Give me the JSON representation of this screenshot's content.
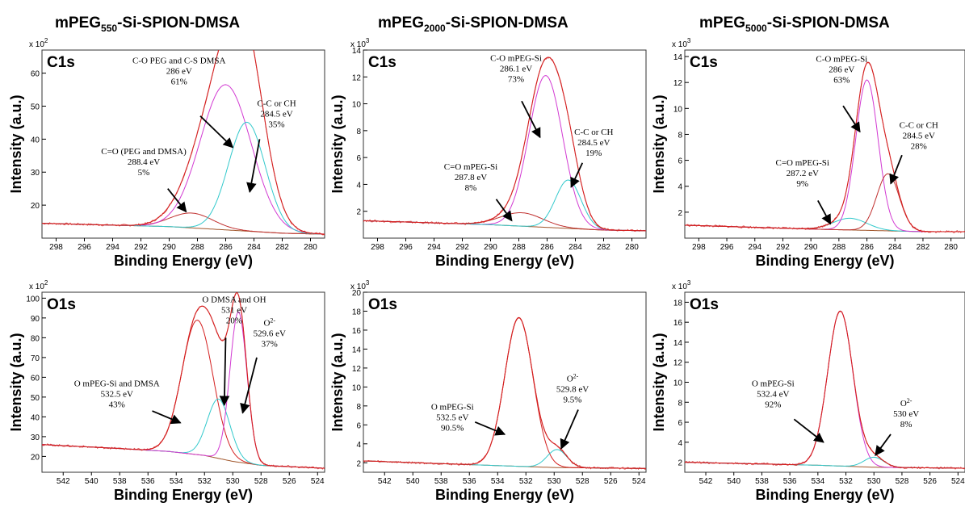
{
  "figure": {
    "columns": [
      {
        "main": "mPEG",
        "sub": "550",
        "rest": "-Si-SPION-DMSA"
      },
      {
        "main": "mPEG",
        "sub": "2000",
        "rest": "-Si-SPION-DMSA"
      },
      {
        "main": "mPEG",
        "sub": "5000",
        "rest": "-Si-SPION-DMSA"
      }
    ],
    "colors": {
      "envelope": "#d42020",
      "component_main": "#d23ad2",
      "component_secondary": "#33c9cc",
      "component_tertiary": "#c0302f",
      "background": "#a0552a",
      "frame": "#333333"
    }
  },
  "chart_data": [
    {
      "type": "line",
      "panel": "C1s",
      "sample": "mPEG550-Si-SPION-DMSA",
      "xlabel": "Binding Energy (eV)",
      "ylabel": "Intensity (a.u.)",
      "y_multiplier": "x 10",
      "y_exp": "2",
      "xlim": [
        299,
        279
      ],
      "ylim": [
        10,
        67
      ],
      "xticks": [
        298,
        296,
        294,
        292,
        290,
        288,
        286,
        284,
        282,
        280
      ],
      "yticks": [
        20,
        30,
        40,
        50,
        60
      ],
      "background": [
        [
          299,
          14.5
        ],
        [
          290,
          13.5
        ],
        [
          286,
          12.5
        ],
        [
          282,
          11.5
        ],
        [
          279,
          11.2
        ]
      ],
      "series": [
        {
          "label": "C=O (PEG and DMSA)",
          "center": 288.4,
          "height": 4.5,
          "width": 1.5,
          "color": "#c0302f",
          "baseline": true
        },
        {
          "label": "C-O PEG and C-S DMSA",
          "center": 286,
          "height": 44,
          "width": 1.8,
          "color": "#d23ad2",
          "baseline": true
        },
        {
          "label": "C-C or CH",
          "center": 284.5,
          "height": 33,
          "width": 1.3,
          "color": "#33c9cc",
          "baseline": true
        }
      ],
      "annotations": [
        {
          "lines": [
            "C-O PEG and C-S DMSA",
            "286 eV",
            "61%"
          ],
          "tx": 289.3,
          "ty": 63,
          "ax": 287.8,
          "ay": 47,
          "bx": 285.5,
          "by": 37.5
        },
        {
          "lines": [
            "C-C or CH",
            "284.5 eV",
            "35%"
          ],
          "tx": 282.4,
          "ty": 50,
          "ax": 283.6,
          "ay": 40,
          "bx": 284.3,
          "by": 24
        },
        {
          "lines": [
            "C=O (PEG and DMSA)",
            "288.4 eV",
            "5%"
          ],
          "tx": 291.8,
          "ty": 35.5,
          "ax": 290.1,
          "ay": 25,
          "bx": 288.8,
          "by": 18
        }
      ]
    },
    {
      "type": "line",
      "panel": "C1s",
      "sample": "mPEG2000-Si-SPION-DMSA",
      "xlabel": "Binding Energy (eV)",
      "ylabel": "Intensity (a.u.)",
      "y_multiplier": "x 10",
      "y_exp": "3",
      "xlim": [
        299,
        279
      ],
      "ylim": [
        0,
        14
      ],
      "xticks": [
        298,
        296,
        294,
        292,
        290,
        288,
        286,
        284,
        282,
        280
      ],
      "yticks": [
        2,
        4,
        6,
        8,
        10,
        12,
        14
      ],
      "background": [
        [
          299,
          1.3
        ],
        [
          290,
          1.0
        ],
        [
          286,
          0.8
        ],
        [
          282,
          0.6
        ],
        [
          279,
          0.55
        ]
      ],
      "series": [
        {
          "label": "C=O mPEG-Si",
          "center": 287.8,
          "height": 1.0,
          "width": 1.5,
          "color": "#c0302f",
          "baseline": true
        },
        {
          "label": "C-O mPEG-Si",
          "center": 286.1,
          "height": 11.3,
          "width": 1.2,
          "color": "#d23ad2",
          "baseline": true
        },
        {
          "label": "C-C or CH",
          "center": 284.5,
          "height": 3.6,
          "width": 0.9,
          "color": "#33c9cc",
          "baseline": true
        }
      ],
      "annotations": [
        {
          "lines": [
            "C-O mPEG-Si",
            "286.1 eV",
            "73%"
          ],
          "tx": 288.2,
          "ty": 13.2,
          "ax": 287.8,
          "ay": 10.2,
          "bx": 286.5,
          "by": 7.5
        },
        {
          "lines": [
            "C-C or CH",
            "284.5 eV",
            "19%"
          ],
          "tx": 282.7,
          "ty": 7.7,
          "ax": 283.5,
          "ay": 5.6,
          "bx": 284.3,
          "by": 3.8
        },
        {
          "lines": [
            "C=O mPEG-Si",
            "287.8 eV",
            "8%"
          ],
          "tx": 291.4,
          "ty": 5.1,
          "ax": 289.6,
          "ay": 2.9,
          "bx": 288.5,
          "by": 1.3
        }
      ]
    },
    {
      "type": "line",
      "panel": "C1s",
      "sample": "mPEG5000-Si-SPION-DMSA",
      "xlabel": "Binding Energy (eV)",
      "ylabel": "Intensity (a.u.)",
      "y_multiplier": "x 10",
      "y_exp": "3",
      "xlim": [
        299,
        279
      ],
      "ylim": [
        0,
        14.5
      ],
      "xticks": [
        298,
        296,
        294,
        292,
        290,
        288,
        286,
        284,
        282,
        280
      ],
      "yticks": [
        2,
        4,
        6,
        8,
        10,
        12,
        14
      ],
      "background": [
        [
          299,
          1.0
        ],
        [
          290,
          0.7
        ],
        [
          286,
          0.6
        ],
        [
          282,
          0.5
        ],
        [
          279,
          0.5
        ]
      ],
      "series": [
        {
          "label": "C=O mPEG-Si",
          "center": 287.2,
          "height": 0.9,
          "width": 1.2,
          "color": "#33c9cc",
          "baseline": true
        },
        {
          "label": "C-O mPEG-Si",
          "center": 286,
          "height": 11.6,
          "width": 0.8,
          "color": "#d23ad2",
          "baseline": true
        },
        {
          "label": "C-C or CH",
          "center": 284.5,
          "height": 4.4,
          "width": 0.8,
          "color": "#c0302f",
          "baseline": true
        }
      ],
      "annotations": [
        {
          "lines": [
            "C-O mPEG-Si",
            "286 eV",
            "63%"
          ],
          "tx": 287.8,
          "ty": 13.6,
          "ax": 287.7,
          "ay": 10.2,
          "bx": 286.5,
          "by": 8.2
        },
        {
          "lines": [
            "C-C or CH",
            "284.5 eV",
            "28%"
          ],
          "tx": 282.3,
          "ty": 8.5,
          "ax": 283.5,
          "ay": 6.4,
          "bx": 284.3,
          "by": 4.2
        },
        {
          "lines": [
            "C=O mPEG-Si",
            "287.2 eV",
            "9%"
          ],
          "tx": 290.6,
          "ty": 5.6,
          "ax": 289.5,
          "ay": 2.9,
          "bx": 288.6,
          "by": 1.1
        }
      ]
    },
    {
      "type": "line",
      "panel": "O1s",
      "sample": "mPEG550-Si-SPION-DMSA",
      "xlabel": "Binding Energy (eV)",
      "ylabel": "Intensity (a.u.)",
      "y_multiplier": "x 10",
      "y_exp": "2",
      "xlim": [
        543.5,
        523.5
      ],
      "ylim": [
        12,
        103
      ],
      "xticks": [
        542,
        540,
        538,
        536,
        534,
        532,
        530,
        528,
        526,
        524
      ],
      "yticks": [
        20,
        30,
        40,
        50,
        60,
        70,
        80,
        90,
        100
      ],
      "background": [
        [
          543.5,
          26
        ],
        [
          538,
          24
        ],
        [
          534.5,
          22.5
        ],
        [
          532,
          20.5
        ],
        [
          530,
          17.5
        ],
        [
          528,
          15.5
        ],
        [
          523.5,
          14
        ]
      ],
      "series": [
        {
          "label": "O mPEG-Si and DMSA",
          "center": 532.5,
          "height": 68,
          "width": 1.1,
          "color": "#d42020",
          "baseline": true
        },
        {
          "label": "O DMSA and OH",
          "center": 531,
          "height": 30,
          "width": 0.8,
          "color": "#33c9cc",
          "baseline": true
        },
        {
          "label": "O2-",
          "center": 529.6,
          "height": 76,
          "width": 0.6,
          "color": "#d23ad2",
          "baseline": true
        }
      ],
      "annotations": [
        {
          "lines": [
            "O DMSA and OH",
            "531 eV",
            "20%"
          ],
          "tx": 529.9,
          "ty": 98,
          "ax": 530.5,
          "ay": 80,
          "bx": 530.6,
          "by": 46
        },
        {
          "lines": [
            "O2-",
            "529.6 eV",
            "37%"
          ],
          "tx": 527.4,
          "ty": 86,
          "ax": 528.3,
          "ay": 70,
          "bx": 529.3,
          "by": 42
        },
        {
          "lines": [
            "O mPEG-Si and DMSA",
            "532.5 eV",
            "43%"
          ],
          "tx": 538.2,
          "ty": 55.5,
          "ax": 535.7,
          "ay": 43,
          "bx": 533.7,
          "by": 37
        }
      ]
    },
    {
      "type": "line",
      "panel": "O1s",
      "sample": "mPEG2000-Si-SPION-DMSA",
      "xlabel": "Binding Energy (eV)",
      "ylabel": "Intensity (a.u.)",
      "y_multiplier": "x 10",
      "y_exp": "3",
      "xlim": [
        543.5,
        523.5
      ],
      "ylim": [
        1,
        20
      ],
      "xticks": [
        542,
        540,
        538,
        536,
        534,
        532,
        530,
        528,
        526,
        524
      ],
      "yticks": [
        2,
        4,
        6,
        8,
        10,
        12,
        14,
        16,
        18,
        20
      ],
      "background": [
        [
          543.5,
          2.2
        ],
        [
          534,
          1.7
        ],
        [
          530,
          1.5
        ],
        [
          523.5,
          1.4
        ]
      ],
      "series": [
        {
          "label": "O mPEG-Si",
          "center": 532.5,
          "height": 15.7,
          "width": 1.0,
          "color": "#d42020",
          "baseline": true
        },
        {
          "label": "O2-",
          "center": 529.8,
          "height": 1.9,
          "width": 0.7,
          "color": "#33c9cc",
          "baseline": true
        }
      ],
      "annotations": [
        {
          "lines": [
            "O2-",
            "529.8 eV",
            "9.5%"
          ],
          "tx": 528.7,
          "ty": 10.6,
          "ax": 528.3,
          "ay": 7.6,
          "bx": 529.5,
          "by": 3.5
        },
        {
          "lines": [
            "O mPEG-Si",
            "532.5 eV",
            "90.5%"
          ],
          "tx": 537.2,
          "ty": 7.6,
          "ax": 535.6,
          "ay": 6.3,
          "bx": 533.5,
          "by": 5.0
        }
      ]
    },
    {
      "type": "line",
      "panel": "O1s",
      "sample": "mPEG5000-Si-SPION-DMSA",
      "xlabel": "Binding Energy (eV)",
      "ylabel": "Intensity (a.u.)",
      "y_multiplier": "x 10",
      "y_exp": "3",
      "xlim": [
        543.5,
        523.5
      ],
      "ylim": [
        1,
        19
      ],
      "xticks": [
        542,
        540,
        538,
        536,
        534,
        532,
        530,
        528,
        526,
        524
      ],
      "yticks": [
        2,
        4,
        6,
        8,
        10,
        12,
        14,
        16,
        18
      ],
      "background": [
        [
          543.5,
          2.0
        ],
        [
          534,
          1.7
        ],
        [
          530,
          1.5
        ],
        [
          523.5,
          1.4
        ]
      ],
      "series": [
        {
          "label": "O mPEG-Si",
          "center": 532.4,
          "height": 15.5,
          "width": 0.9,
          "color": "#d23ad2",
          "baseline": true
        },
        {
          "label": "O2-",
          "center": 530,
          "height": 1.0,
          "width": 0.7,
          "color": "#33c9cc",
          "baseline": true
        }
      ],
      "annotations": [
        {
          "lines": [
            "O mPEG-Si",
            "532.4 eV",
            "92%"
          ],
          "tx": 537.2,
          "ty": 9.6,
          "ax": 535.7,
          "ay": 6.3,
          "bx": 533.6,
          "by": 4.0
        },
        {
          "lines": [
            "O2-",
            "530 eV",
            "8%"
          ],
          "tx": 527.7,
          "ty": 7.6,
          "ax": 528.8,
          "ay": 4.8,
          "bx": 529.9,
          "by": 2.7
        }
      ]
    }
  ]
}
